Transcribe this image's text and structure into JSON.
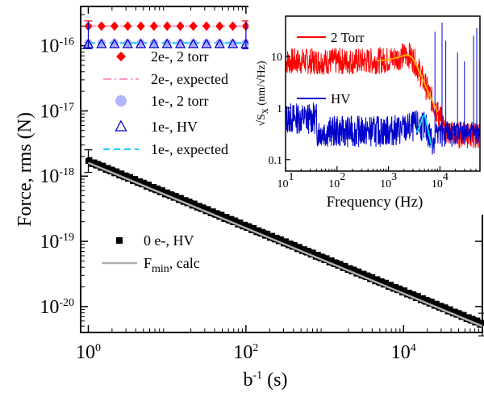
{
  "chart_data": [
    {
      "type": "scatter",
      "scale": {
        "x": "log",
        "y": "log"
      },
      "xlim": [
        0.8,
        100000
      ],
      "ylim": [
        4e-21,
        4e-16
      ],
      "xlabel_main": "b",
      "xlabel_sup": "-1",
      "xlabel_rest": " (s)",
      "ylabel": "Force, rms (N)",
      "x_tick_base": [
        "10",
        "10",
        "10"
      ],
      "x_tick_exp": [
        "0",
        "2",
        "4"
      ],
      "x_tick_values": [
        1,
        100,
        10000
      ],
      "y_tick_base": [
        "10",
        "10",
        "10",
        "10",
        "10"
      ],
      "y_tick_exp": [
        "-20",
        "-19",
        "-18",
        "-17",
        "-16"
      ],
      "y_tick_values": [
        1e-20,
        1e-19,
        1e-18,
        1e-17,
        1e-16
      ],
      "legend": {
        "placement": "left, inside",
        "entries": [
          {
            "label": "2e-, 2 torr",
            "color": "#ff0000",
            "marker": "filled-diamond"
          },
          {
            "label": "2e-, expected",
            "color": "#ff99cc",
            "marker": "dash-dot-line"
          },
          {
            "label": "1e-, 2 torr",
            "color": "#9999ff",
            "marker": "filled-circle"
          },
          {
            "label": "1e-, HV",
            "color": "#0000cc",
            "marker": "open-triangle"
          },
          {
            "label": "1e-, expected",
            "color": "#00d0ff",
            "marker": "dashed-line"
          },
          {
            "label": "0 e-, HV",
            "color": "#000000",
            "marker": "filled-square"
          }
        ],
        "fmin_label": "F",
        "fmin_sub": "min",
        "fmin_rest": ", calc",
        "fmin_color": "#b0b0b0"
      },
      "series": [
        {
          "name": "2e-, 2 torr",
          "color": "#ff0000",
          "x": [
            1,
            1.47,
            2.15,
            3.16,
            4.64,
            6.81,
            10,
            14.7,
            21.5,
            31.6,
            46.4,
            68.1,
            100
          ],
          "y": [
            2e-16,
            2e-16,
            2e-16,
            2e-16,
            2e-16,
            2e-16,
            2e-16,
            2e-16,
            2e-16,
            2e-16,
            2e-16,
            2e-16,
            2e-16
          ]
        },
        {
          "name": "2e-, expected",
          "color": "#ff99cc",
          "x": [
            1,
            100
          ],
          "y": [
            2e-16,
            2e-16
          ]
        },
        {
          "name": "1e-, 2 torr",
          "color": "#9999ff",
          "x": [
            1,
            1.47,
            2.15,
            3.16,
            4.64,
            6.81,
            10,
            14.7,
            21.5,
            31.6,
            46.4,
            68.1,
            100
          ],
          "y": [
            1.1e-16,
            1.1e-16,
            1.1e-16,
            1.1e-16,
            1.1e-16,
            1.1e-16,
            1.1e-16,
            1.1e-16,
            1.1e-16,
            1.1e-16,
            1.1e-16,
            1.1e-16,
            1.1e-16
          ]
        },
        {
          "name": "1e-, HV",
          "color": "#0000cc",
          "x": [
            1,
            1.47,
            2.15,
            3.16,
            4.64,
            6.81,
            10,
            14.7,
            21.5,
            31.6,
            46.4,
            68.1,
            100
          ],
          "y": [
            1.05e-16,
            1.05e-16,
            1.05e-16,
            1.05e-16,
            1.05e-16,
            1.05e-16,
            1.05e-16,
            1.05e-16,
            1.05e-16,
            1.05e-16,
            1.05e-16,
            1.05e-16,
            1.05e-16
          ]
        },
        {
          "name": "1e-, expected",
          "color": "#00d0ff",
          "x": [
            1,
            100
          ],
          "y": [
            1.1e-16,
            1.1e-16
          ]
        },
        {
          "name": "0 e-, HV",
          "color": "#000000",
          "x_range": [
            1,
            100000
          ],
          "y_at_1": 1.7e-18,
          "slope": -0.5,
          "points": 320
        },
        {
          "name": "Fmin, calc",
          "color": "#b0b0b0",
          "x": [
            1,
            100000
          ],
          "y": [
            1.6e-18,
            5e-21
          ]
        }
      ]
    },
    {
      "type": "line",
      "scale": {
        "x": "log",
        "y": "log"
      },
      "xlim": [
        10,
        60000
      ],
      "ylim": [
        0.06,
        60
      ],
      "xlabel": "Frequency (Hz)",
      "ylabel": "(nm/√Hz)",
      "ylabel_symbol": "√S",
      "ylabel_sub": "x",
      "x_tick_base": [
        "10",
        "10",
        "10",
        "10"
      ],
      "x_tick_exp": [
        "1",
        "2",
        "3",
        "4"
      ],
      "x_tick_values": [
        10,
        100,
        1000,
        10000
      ],
      "y_tick_labels": [
        "0.1",
        "1",
        "10"
      ],
      "y_tick_values": [
        0.1,
        1,
        10
      ],
      "series": [
        {
          "name": "2 Torr",
          "color": "#ff0000",
          "level": 8.0,
          "resonance_hz": 2800,
          "peak": 18
        },
        {
          "name": "HV",
          "color": "#0000cc",
          "level": 0.35,
          "resonance_hz": 5000,
          "peak": 0.7
        },
        {
          "color": "#ffaa00",
          "fit_of": "2 Torr"
        },
        {
          "color": "#00e0e0",
          "fit_of": "HV"
        }
      ]
    }
  ]
}
